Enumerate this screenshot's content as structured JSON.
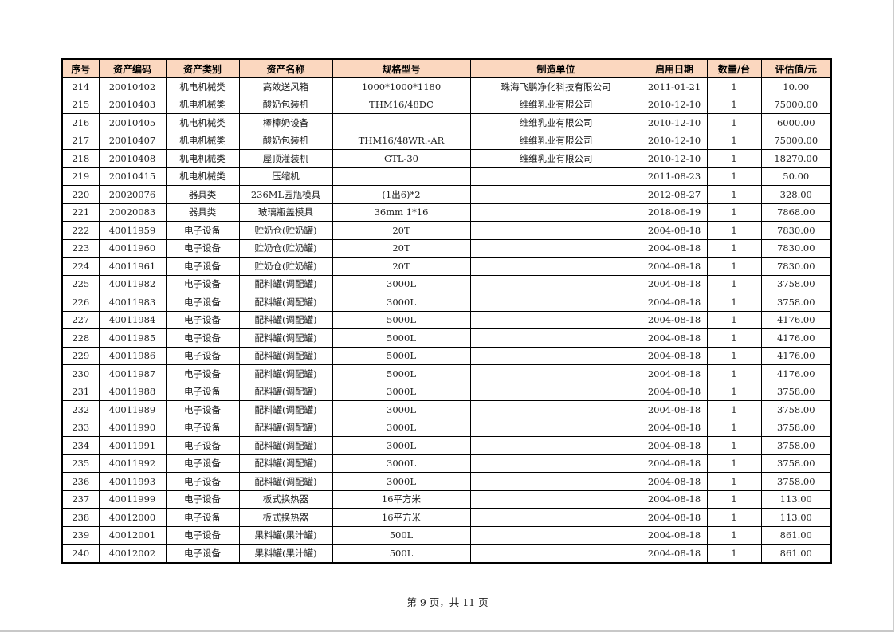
{
  "table": {
    "headers": [
      "序号",
      "资产编码",
      "资产类别",
      "资产名称",
      "规格型号",
      "制造单位",
      "启用日期",
      "数量/台",
      "评估值/元"
    ],
    "rows": [
      [
        "214",
        "20010402",
        "机电机械类",
        "高效送风箱",
        "1000*1000*1180",
        "珠海飞鹏净化科技有限公司",
        "2011-01-21",
        "1",
        "10.00"
      ],
      [
        "215",
        "20010403",
        "机电机械类",
        "酸奶包装机",
        "THM16/48DC",
        "维维乳业有限公司",
        "2010-12-10",
        "1",
        "75000.00"
      ],
      [
        "216",
        "20010405",
        "机电机械类",
        "棒棒奶设备",
        "",
        "维维乳业有限公司",
        "2010-12-10",
        "1",
        "6000.00"
      ],
      [
        "217",
        "20010407",
        "机电机械类",
        "酸奶包装机",
        "THM16/48WR.-AR",
        "维维乳业有限公司",
        "2010-12-10",
        "1",
        "75000.00"
      ],
      [
        "218",
        "20010408",
        "机电机械类",
        "屋顶灌装机",
        "GTL-30",
        "维维乳业有限公司",
        "2010-12-10",
        "1",
        "18270.00"
      ],
      [
        "219",
        "20010415",
        "机电机械类",
        "压缩机",
        "",
        "",
        "2011-08-23",
        "1",
        "50.00"
      ],
      [
        "220",
        "20020076",
        "器具类",
        "236ML园瓶模具",
        "(1出6)*2",
        "",
        "2012-08-27",
        "1",
        "328.00"
      ],
      [
        "221",
        "20020083",
        "器具类",
        "玻璃瓶盖模具",
        "36mm 1*16",
        "",
        "2018-06-19",
        "1",
        "7868.00"
      ],
      [
        "222",
        "40011959",
        "电子设备",
        "贮奶仓(贮奶罐)",
        "20T",
        "",
        "2004-08-18",
        "1",
        "7830.00"
      ],
      [
        "223",
        "40011960",
        "电子设备",
        "贮奶仓(贮奶罐)",
        "20T",
        "",
        "2004-08-18",
        "1",
        "7830.00"
      ],
      [
        "224",
        "40011961",
        "电子设备",
        "贮奶仓(贮奶罐)",
        "20T",
        "",
        "2004-08-18",
        "1",
        "7830.00"
      ],
      [
        "225",
        "40011982",
        "电子设备",
        "配料罐(调配罐)",
        "3000L",
        "",
        "2004-08-18",
        "1",
        "3758.00"
      ],
      [
        "226",
        "40011983",
        "电子设备",
        "配料罐(调配罐)",
        "3000L",
        "",
        "2004-08-18",
        "1",
        "3758.00"
      ],
      [
        "227",
        "40011984",
        "电子设备",
        "配料罐(调配罐)",
        "5000L",
        "",
        "2004-08-18",
        "1",
        "4176.00"
      ],
      [
        "228",
        "40011985",
        "电子设备",
        "配料罐(调配罐)",
        "5000L",
        "",
        "2004-08-18",
        "1",
        "4176.00"
      ],
      [
        "229",
        "40011986",
        "电子设备",
        "配料罐(调配罐)",
        "5000L",
        "",
        "2004-08-18",
        "1",
        "4176.00"
      ],
      [
        "230",
        "40011987",
        "电子设备",
        "配料罐(调配罐)",
        "5000L",
        "",
        "2004-08-18",
        "1",
        "4176.00"
      ],
      [
        "231",
        "40011988",
        "电子设备",
        "配料罐(调配罐)",
        "3000L",
        "",
        "2004-08-18",
        "1",
        "3758.00"
      ],
      [
        "232",
        "40011989",
        "电子设备",
        "配料罐(调配罐)",
        "3000L",
        "",
        "2004-08-18",
        "1",
        "3758.00"
      ],
      [
        "233",
        "40011990",
        "电子设备",
        "配料罐(调配罐)",
        "3000L",
        "",
        "2004-08-18",
        "1",
        "3758.00"
      ],
      [
        "234",
        "40011991",
        "电子设备",
        "配料罐(调配罐)",
        "3000L",
        "",
        "2004-08-18",
        "1",
        "3758.00"
      ],
      [
        "235",
        "40011992",
        "电子设备",
        "配料罐(调配罐)",
        "3000L",
        "",
        "2004-08-18",
        "1",
        "3758.00"
      ],
      [
        "236",
        "40011993",
        "电子设备",
        "配料罐(调配罐)",
        "3000L",
        "",
        "2004-08-18",
        "1",
        "3758.00"
      ],
      [
        "237",
        "40011999",
        "电子设备",
        "板式换热器",
        "16平方米",
        "",
        "2004-08-18",
        "1",
        "113.00"
      ],
      [
        "238",
        "40012000",
        "电子设备",
        "板式换热器",
        "16平方米",
        "",
        "2004-08-18",
        "1",
        "113.00"
      ],
      [
        "239",
        "40012001",
        "电子设备",
        "果料罐(果汁罐)",
        "500L",
        "",
        "2004-08-18",
        "1",
        "861.00"
      ],
      [
        "240",
        "40012002",
        "电子设备",
        "果料罐(果汁罐)",
        "500L",
        "",
        "2004-08-18",
        "1",
        "861.00"
      ]
    ]
  },
  "footer": {
    "page_label": "第 9 页，共 11 页"
  },
  "colors": {
    "header_bg": "#fbd7bf"
  }
}
